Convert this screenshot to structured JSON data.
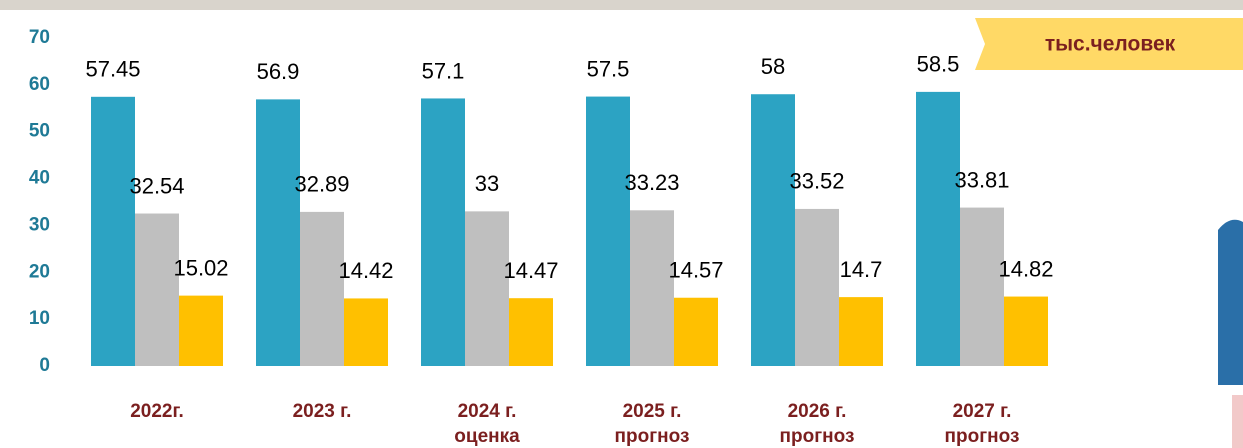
{
  "chart_data": {
    "type": "bar",
    "unit_label": "тыс.человек",
    "categories": [
      [
        "2022г."
      ],
      [
        "2023 г."
      ],
      [
        "2024 г.",
        "оценка"
      ],
      [
        "2025 г.",
        "прогноз"
      ],
      [
        "2026 г.",
        "прогноз"
      ],
      [
        "2027 г.",
        "прогноз"
      ]
    ],
    "series": [
      {
        "color": "#2ca3c3",
        "values": [
          57.45,
          56.9,
          57.1,
          57.5,
          58,
          58.5
        ]
      },
      {
        "color": "#bfbfbf",
        "values": [
          32.54,
          32.89,
          33,
          33.23,
          33.52,
          33.81
        ]
      },
      {
        "color": "#ffc000",
        "values": [
          15.02,
          14.42,
          14.47,
          14.57,
          14.7,
          14.82
        ]
      }
    ],
    "ylim": [
      0,
      70
    ],
    "yticks": [
      0,
      10,
      20,
      30,
      40,
      50,
      60,
      70
    ],
    "grid": false
  }
}
